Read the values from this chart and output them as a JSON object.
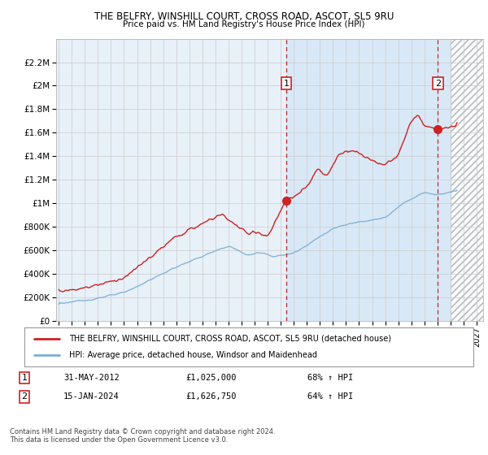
{
  "title1": "THE BELFRY, WINSHILL COURT, CROSS ROAD, ASCOT, SL5 9RU",
  "title2": "Price paid vs. HM Land Registry's House Price Index (HPI)",
  "ylim": [
    0,
    2400000
  ],
  "yticks": [
    0,
    200000,
    400000,
    600000,
    800000,
    1000000,
    1200000,
    1400000,
    1600000,
    1800000,
    2000000,
    2200000
  ],
  "ytick_labels": [
    "£0",
    "£200K",
    "£400K",
    "£600K",
    "£800K",
    "£1M",
    "£1.2M",
    "£1.4M",
    "£1.6M",
    "£1.8M",
    "£2M",
    "£2.2M"
  ],
  "xlim_start": 1994.8,
  "xlim_end": 2027.5,
  "xtick_years": [
    1995,
    1996,
    1997,
    1998,
    1999,
    2000,
    2001,
    2002,
    2003,
    2004,
    2005,
    2006,
    2007,
    2008,
    2009,
    2010,
    2011,
    2012,
    2013,
    2014,
    2015,
    2016,
    2017,
    2018,
    2019,
    2020,
    2021,
    2022,
    2023,
    2024,
    2025,
    2026,
    2027
  ],
  "hpi_color": "#7bafd4",
  "price_color": "#cc2222",
  "bg_color": "#e8f0f8",
  "bg_color_right": "#ddeeff",
  "grid_color": "#cccccc",
  "hatch_start": 2025.0,
  "sale1_x": 2012.42,
  "sale1_y": 1025000,
  "sale2_x": 2024.04,
  "sale2_y": 1626750,
  "legend_line1": "THE BELFRY, WINSHILL COURT, CROSS ROAD, ASCOT, SL5 9RU (detached house)",
  "legend_line2": "HPI: Average price, detached house, Windsor and Maidenhead",
  "note1_date": "31-MAY-2012",
  "note1_price": "£1,025,000",
  "note1_hpi": "68% ↑ HPI",
  "note2_date": "15-JAN-2024",
  "note2_price": "£1,626,750",
  "note2_hpi": "64% ↑ HPI",
  "footer": "Contains HM Land Registry data © Crown copyright and database right 2024.\nThis data is licensed under the Open Government Licence v3.0."
}
